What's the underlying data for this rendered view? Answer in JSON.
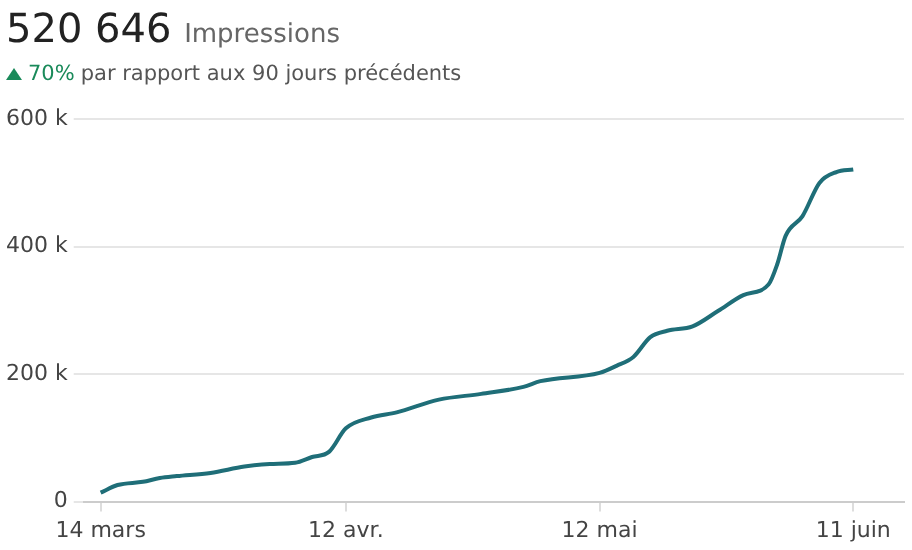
{
  "chart_data": {
    "type": "line",
    "title": "520 646 Impressions",
    "subtitle": "70% par rapport aux 90 jours précédents",
    "x": [
      "--03-14",
      "--03-16",
      "--03-19",
      "--03-21",
      "--03-23",
      "--03-27",
      "--03-31",
      "--04-03",
      "--04-06",
      "--04-08",
      "--04-10",
      "--04-12",
      "--04-15",
      "--04-18",
      "--04-23",
      "--04-28",
      "--05-03",
      "--05-05",
      "--05-12",
      "--05-14",
      "--05-16",
      "--05-18",
      "--05-20",
      "--05-23",
      "--05-26",
      "--05-29",
      "--06-01",
      "--06-02",
      "--06-03",
      "--06-05",
      "--06-07",
      "--06-09",
      "--06-11"
    ],
    "series": [
      {
        "color": "#1f6e78",
        "values": [
          14000,
          26000,
          31000,
          37000,
          40000,
          45000,
          55000,
          59000,
          61000,
          70000,
          78000,
          115000,
          132000,
          140000,
          160000,
          169000,
          180000,
          189000,
          202000,
          213000,
          227000,
          258000,
          268000,
          275000,
          299000,
          324000,
          341000,
          372000,
          417000,
          448000,
          500000,
          517000,
          521000
        ]
      }
    ],
    "xlim": [
      "--03-12",
      "--06-17"
    ],
    "xticks": [
      {
        "value": "--03-14",
        "label": "14 mars"
      },
      {
        "value": "--04-12",
        "label": "12 avr."
      },
      {
        "value": "--05-12",
        "label": "12 mai"
      },
      {
        "value": "--06-11",
        "label": "11 juin"
      }
    ],
    "ylim": [
      0,
      600000
    ],
    "yticks": [
      {
        "value": 0,
        "label": "0"
      },
      {
        "value": 200000,
        "label": "200 k"
      },
      {
        "value": 400000,
        "label": "400 k"
      },
      {
        "value": 600000,
        "label": "600 k"
      }
    ],
    "grid": "y",
    "legend": false,
    "marker": "none",
    "line_style": "solid"
  }
}
